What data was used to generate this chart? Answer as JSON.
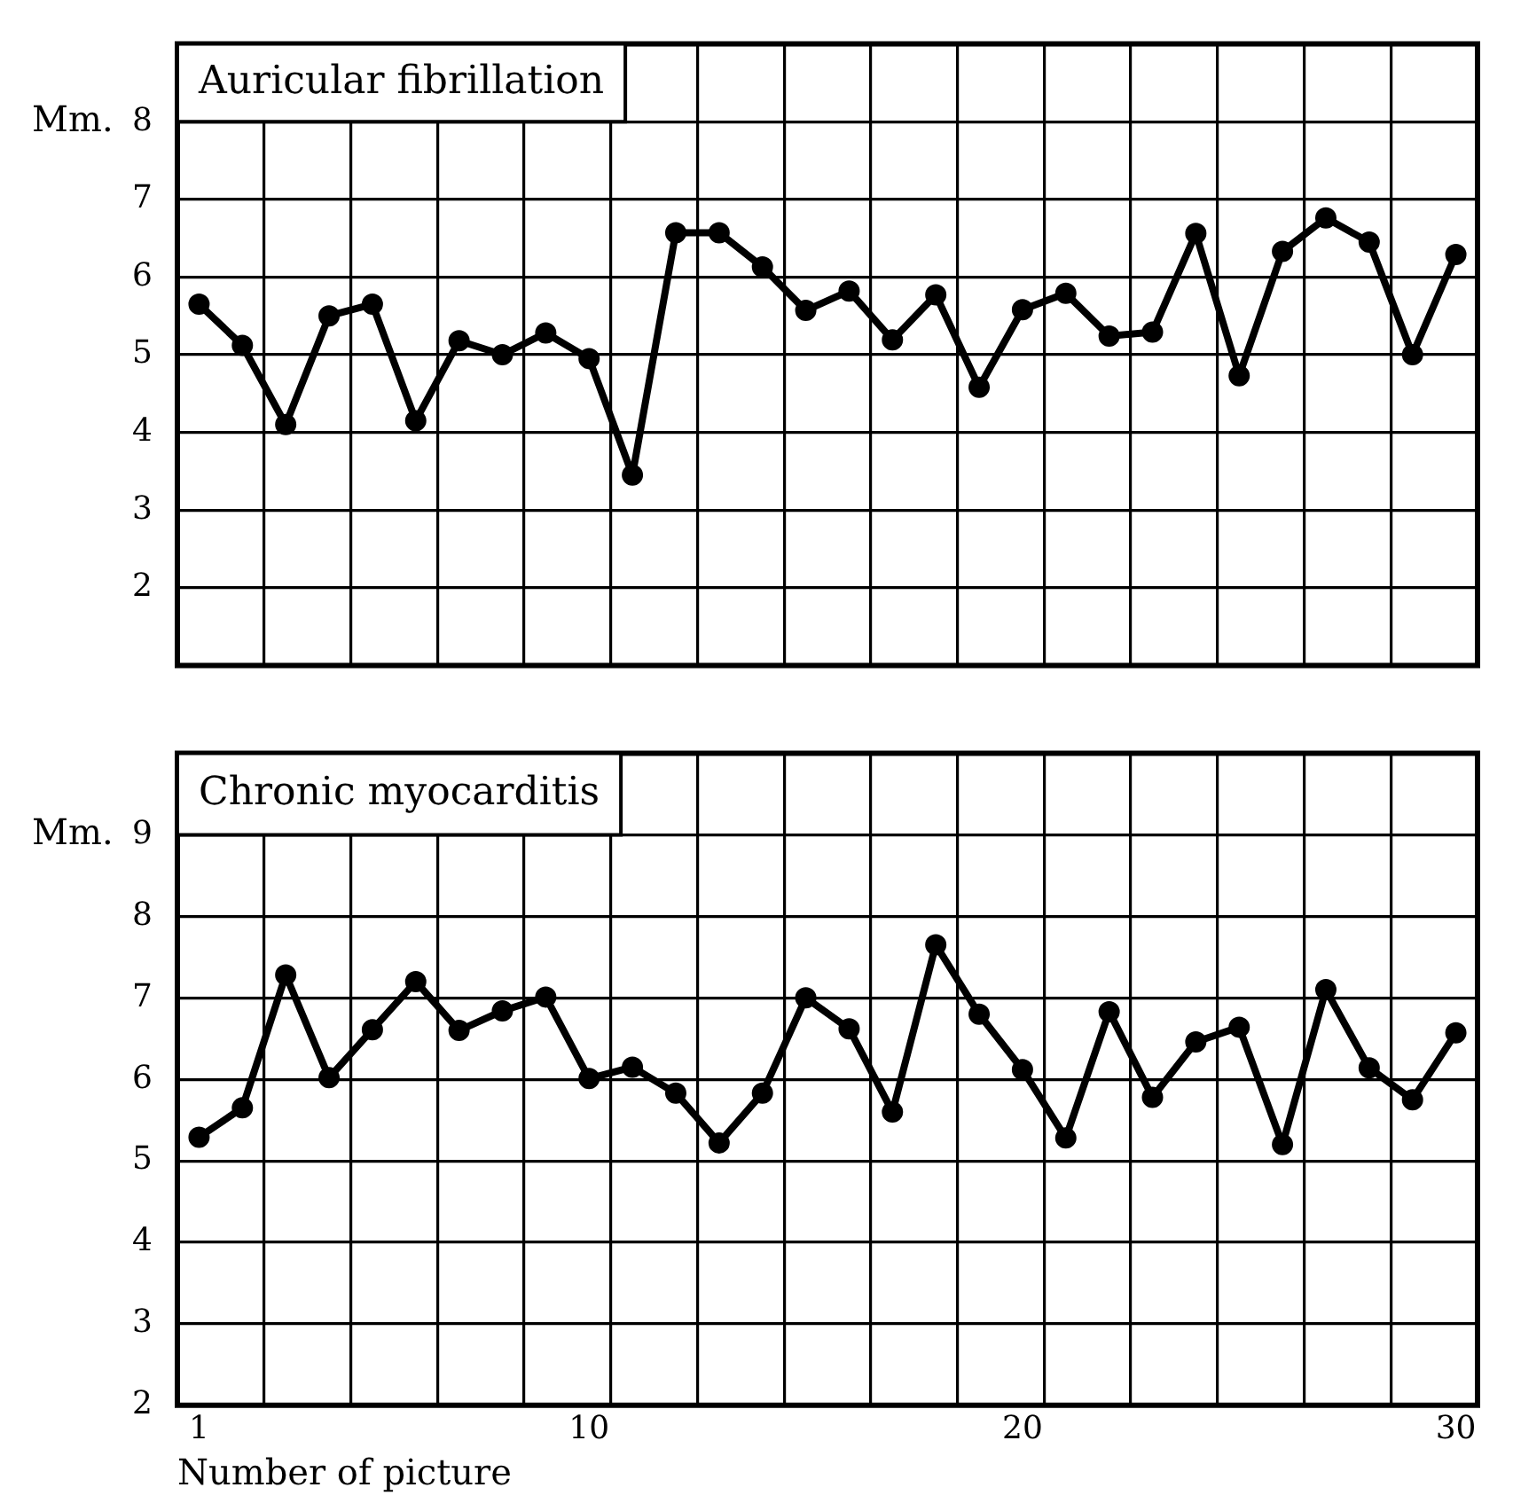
{
  "chart_data": [
    {
      "type": "line",
      "title": "Auricular fibrillation",
      "ylabel": "Mm.",
      "x": [
        1,
        2,
        3,
        4,
        5,
        6,
        7,
        8,
        9,
        10,
        11,
        12,
        13,
        14,
        15,
        16,
        17,
        18,
        19,
        20,
        21,
        22,
        23,
        24,
        25,
        26,
        27,
        28,
        29,
        30
      ],
      "series": [
        {
          "color": "#000000",
          "values": [
            5.65,
            5.12,
            4.1,
            5.5,
            5.65,
            4.15,
            5.18,
            5.0,
            5.28,
            4.95,
            3.45,
            6.57,
            6.57,
            6.13,
            5.57,
            5.82,
            5.19,
            5.77,
            4.58,
            5.58,
            5.79,
            5.24,
            5.29,
            6.56,
            4.73,
            6.33,
            6.76,
            6.45,
            5.0,
            6.29
          ]
        }
      ],
      "xlim": [
        0.5,
        30.5
      ],
      "xticks": [
        {
          "value": 0.5,
          "label": null
        },
        1,
        {
          "value": 2.5,
          "label": null
        },
        {
          "value": 4.5,
          "label": null
        },
        {
          "value": 6.5,
          "label": null
        },
        {
          "value": 8.5,
          "label": null
        },
        10,
        {
          "value": 10.5,
          "label": null
        },
        {
          "value": 12.5,
          "label": null
        },
        {
          "value": 14.5,
          "label": null
        },
        {
          "value": 16.5,
          "label": null
        },
        {
          "value": 18.5,
          "label": null
        },
        20,
        {
          "value": 20.5,
          "label": null
        },
        {
          "value": 22.5,
          "label": null
        },
        {
          "value": 24.5,
          "label": null
        },
        {
          "value": 26.5,
          "label": null
        },
        {
          "value": 28.5,
          "label": null
        },
        30,
        {
          "value": 30.5,
          "label": null
        }
      ],
      "ylim": [
        1,
        9
      ],
      "yticks": [
        2,
        3,
        4,
        5,
        6,
        7,
        8
      ],
      "tick_labels": "y",
      "grid": true,
      "legend": false,
      "marker": "circle",
      "line_style": "solid"
    },
    {
      "type": "line",
      "title": "Chronic myocarditis",
      "ylabel": "Mm.",
      "xlabel": "Number of picture",
      "x": [
        1,
        2,
        3,
        4,
        5,
        6,
        7,
        8,
        9,
        10,
        11,
        12,
        13,
        14,
        15,
        16,
        17,
        18,
        19,
        20,
        21,
        22,
        23,
        24,
        25,
        26,
        27,
        28,
        29,
        30
      ],
      "series": [
        {
          "color": "#000000",
          "values": [
            5.29,
            5.65,
            7.28,
            6.02,
            6.61,
            7.2,
            6.6,
            6.84,
            7.01,
            6.01,
            6.15,
            5.83,
            5.22,
            5.83,
            7.0,
            6.62,
            5.6,
            7.65,
            6.8,
            6.12,
            5.28,
            6.83,
            5.78,
            6.46,
            6.64,
            5.2,
            7.1,
            6.14,
            5.75,
            6.57
          ]
        }
      ],
      "xlim": [
        0.5,
        30.5
      ],
      "xticks": [
        {
          "value": 0.5,
          "label": null
        },
        1,
        {
          "value": 2.5,
          "label": null
        },
        {
          "value": 4.5,
          "label": null
        },
        {
          "value": 6.5,
          "label": null
        },
        {
          "value": 8.5,
          "label": null
        },
        10,
        {
          "value": 10.5,
          "label": null
        },
        {
          "value": 12.5,
          "label": null
        },
        {
          "value": 14.5,
          "label": null
        },
        {
          "value": 16.5,
          "label": null
        },
        {
          "value": 18.5,
          "label": null
        },
        20,
        {
          "value": 20.5,
          "label": null
        },
        {
          "value": 22.5,
          "label": null
        },
        {
          "value": 24.5,
          "label": null
        },
        {
          "value": 26.5,
          "label": null
        },
        {
          "value": 28.5,
          "label": null
        },
        30,
        {
          "value": 30.5,
          "label": null
        }
      ],
      "ylim": [
        2,
        10
      ],
      "yticks": [
        2,
        3,
        4,
        5,
        6,
        7,
        8,
        9
      ],
      "grid": true,
      "legend": false,
      "marker": "circle",
      "line_style": "solid"
    }
  ]
}
